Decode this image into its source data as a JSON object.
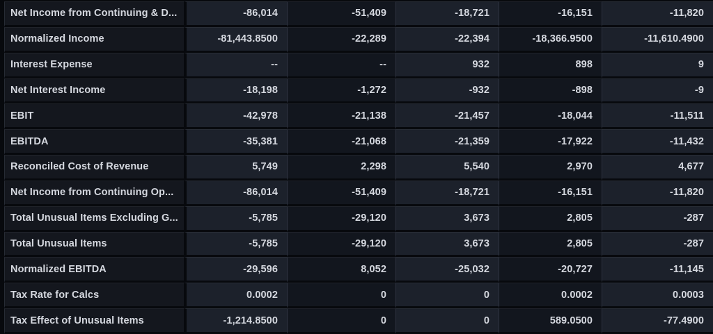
{
  "table": {
    "description": "financial-statement-values-table",
    "value_column_count": 5,
    "rows": [
      {
        "label": "Net Income from Continuing & D...",
        "values": [
          "-86,014",
          "-51,409",
          "-18,721",
          "-16,151",
          "-11,820"
        ]
      },
      {
        "label": "Normalized Income",
        "values": [
          "-81,443.8500",
          "-22,289",
          "-22,394",
          "-18,366.9500",
          "-11,610.4900"
        ]
      },
      {
        "label": "Interest Expense",
        "values": [
          "--",
          "--",
          "932",
          "898",
          "9"
        ]
      },
      {
        "label": "Net Interest Income",
        "values": [
          "-18,198",
          "-1,272",
          "-932",
          "-898",
          "-9"
        ]
      },
      {
        "label": "EBIT",
        "values": [
          "-42,978",
          "-21,138",
          "-21,457",
          "-18,044",
          "-11,511"
        ]
      },
      {
        "label": "EBITDA",
        "values": [
          "-35,381",
          "-21,068",
          "-21,359",
          "-17,922",
          "-11,432"
        ]
      },
      {
        "label": "Reconciled Cost of Revenue",
        "values": [
          "5,749",
          "2,298",
          "5,540",
          "2,970",
          "4,677"
        ]
      },
      {
        "label": "Net Income from Continuing Op...",
        "values": [
          "-86,014",
          "-51,409",
          "-18,721",
          "-16,151",
          "-11,820"
        ]
      },
      {
        "label": "Total Unusual Items Excluding G...",
        "values": [
          "-5,785",
          "-29,120",
          "3,673",
          "2,805",
          "-287"
        ]
      },
      {
        "label": "Total Unusual Items",
        "values": [
          "-5,785",
          "-29,120",
          "3,673",
          "2,805",
          "-287"
        ]
      },
      {
        "label": "Normalized EBITDA",
        "values": [
          "-29,596",
          "8,052",
          "-25,032",
          "-20,727",
          "-11,145"
        ]
      },
      {
        "label": "Tax Rate for Calcs",
        "values": [
          "0.0002",
          "0",
          "0",
          "0.0002",
          "0.0003"
        ]
      },
      {
        "label": "Tax Effect of Unusual Items",
        "values": [
          "-1,214.8500",
          "0",
          "0",
          "589.0500",
          "-77.4900"
        ]
      }
    ]
  },
  "colors": {
    "background": "#07090d",
    "label_column_bg": "#14171e",
    "value_column_bg_light": "#1c212b",
    "value_column_bg_dark": "#12161e",
    "row_separator": "#07090d",
    "column_rule": "#2e3340",
    "text": "#d5d8df"
  }
}
